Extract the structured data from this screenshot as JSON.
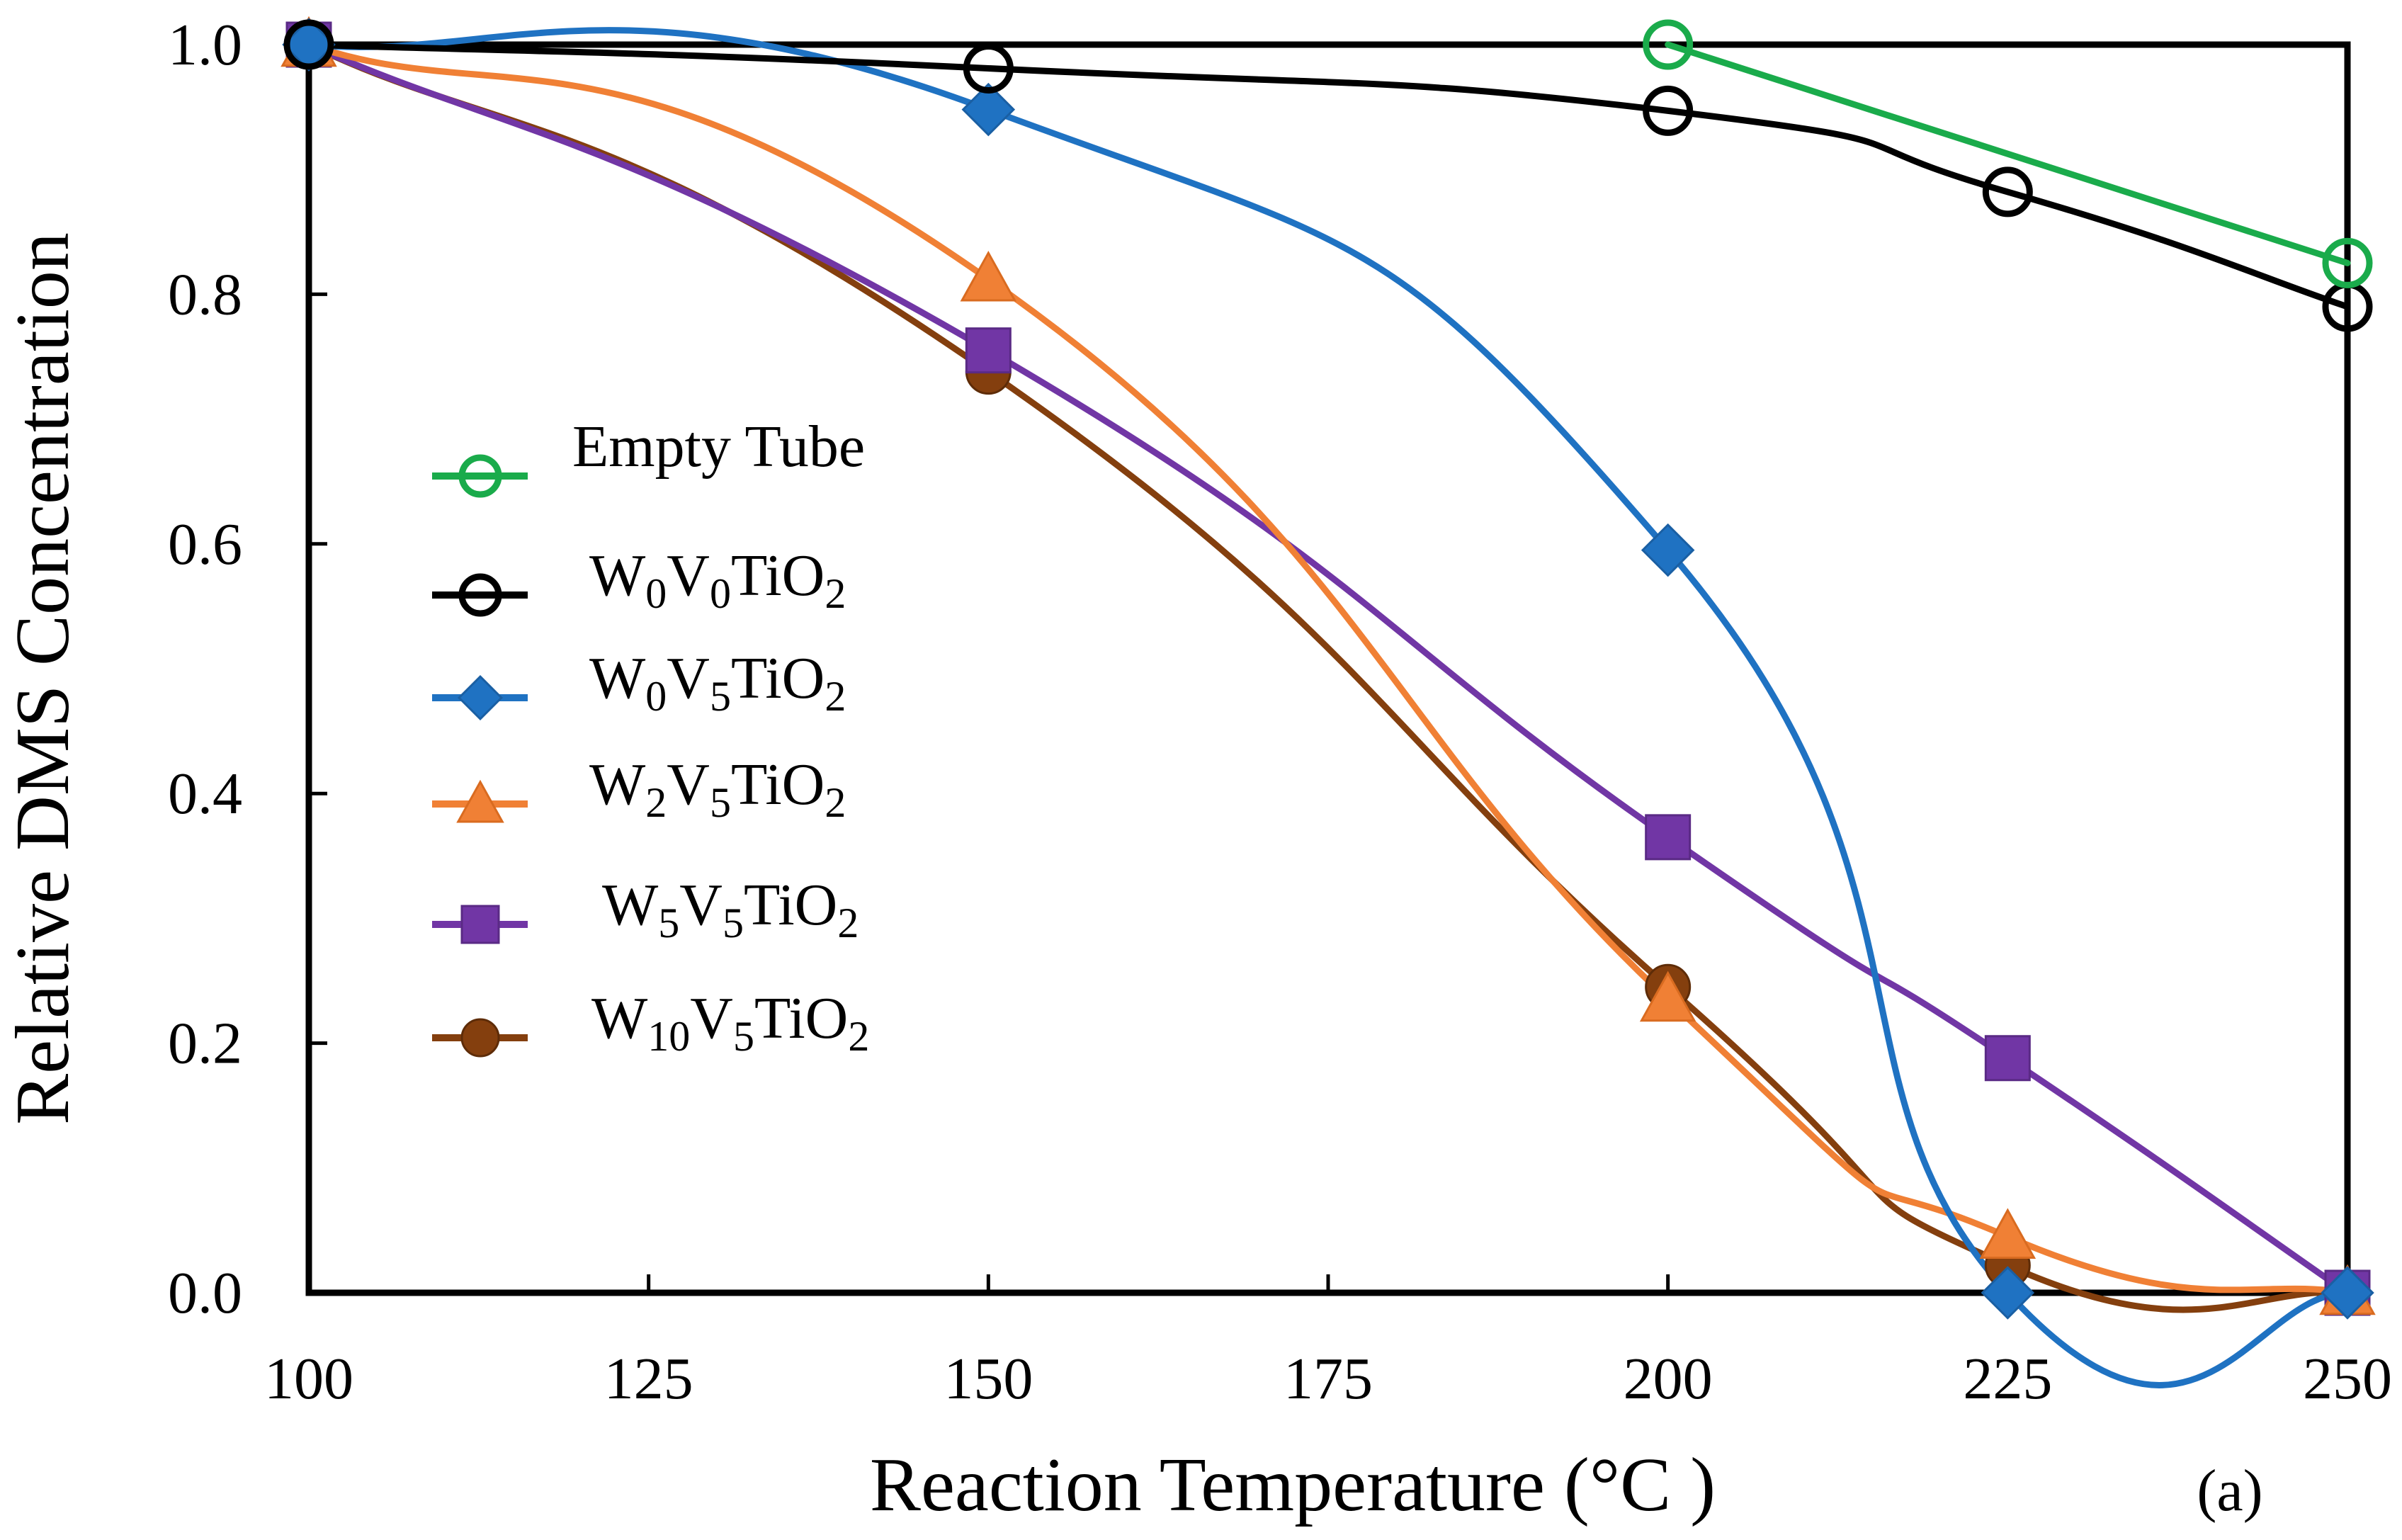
{
  "chart_data": {
    "type": "line",
    "title": "",
    "xlabel": "Reaction Temperature (°C )",
    "ylabel": "Relative DMS Concentration",
    "panel_label": "(a)",
    "xlim": [
      100,
      250
    ],
    "ylim": [
      0.0,
      1.0
    ],
    "xticks": [
      "100",
      "125",
      "150",
      "175",
      "200",
      "225",
      "250"
    ],
    "yticks": [
      "0.0",
      "0.2",
      "0.4",
      "0.6",
      "0.8",
      "1.0"
    ],
    "grid": false,
    "legend_position": "left",
    "series": [
      {
        "name": "Empty Tube",
        "label_parts": [
          {
            "t": "Empty Tube"
          }
        ],
        "color": "#1aab4b",
        "marker": "open-circle",
        "x": [
          200,
          250
        ],
        "y": [
          1.0,
          0.825
        ]
      },
      {
        "name": "W0V0TiO2",
        "label_parts": [
          {
            "t": "W"
          },
          {
            "t": "0",
            "sub": true
          },
          {
            "t": "V"
          },
          {
            "t": "0",
            "sub": true
          },
          {
            "t": "TiO"
          },
          {
            "t": "2",
            "sub": true
          }
        ],
        "color": "#000000",
        "marker": "open-circle",
        "x": [
          100,
          150,
          200,
          225,
          250
        ],
        "y": [
          1.0,
          0.981,
          0.947,
          0.882,
          0.79
        ]
      },
      {
        "name": "W0V5TiO2",
        "label_parts": [
          {
            "t": "W"
          },
          {
            "t": "0",
            "sub": true
          },
          {
            "t": "V"
          },
          {
            "t": "5",
            "sub": true
          },
          {
            "t": "TiO"
          },
          {
            "t": "2",
            "sub": true
          }
        ],
        "color": "#1f72c2",
        "marker": "diamond",
        "x": [
          100,
          150,
          200,
          225,
          250
        ],
        "y": [
          1.0,
          0.948,
          0.595,
          0.0,
          0.0
        ]
      },
      {
        "name": "W2V5TiO2",
        "label_parts": [
          {
            "t": "W"
          },
          {
            "t": "2",
            "sub": true
          },
          {
            "t": "V"
          },
          {
            "t": "5",
            "sub": true
          },
          {
            "t": "TiO"
          },
          {
            "t": "2",
            "sub": true
          }
        ],
        "color": "#f08035",
        "marker": "triangle",
        "x": [
          100,
          150,
          200,
          225,
          250
        ],
        "y": [
          1.0,
          0.812,
          0.235,
          0.045,
          0.0
        ]
      },
      {
        "name": "W5V5TiO2",
        "label_parts": [
          {
            "t": "W"
          },
          {
            "t": "5",
            "sub": true
          },
          {
            "t": "V"
          },
          {
            "t": "5",
            "sub": true
          },
          {
            "t": "TiO"
          },
          {
            "t": "2",
            "sub": true
          }
        ],
        "color": "#7136a5",
        "marker": "square",
        "x": [
          100,
          150,
          200,
          225,
          250
        ],
        "y": [
          1.0,
          0.755,
          0.365,
          0.188,
          0.0
        ]
      },
      {
        "name": "W10V5TiO2",
        "label_parts": [
          {
            "t": "W"
          },
          {
            "t": "10",
            "sub": true
          },
          {
            "t": "V"
          },
          {
            "t": "5",
            "sub": true
          },
          {
            "t": "TiO"
          },
          {
            "t": "2",
            "sub": true
          }
        ],
        "color": "#843f0e",
        "marker": "filled-circle",
        "x": [
          100,
          150,
          200,
          225,
          250
        ],
        "y": [
          1.0,
          0.738,
          0.245,
          0.022,
          0.0
        ]
      }
    ]
  }
}
